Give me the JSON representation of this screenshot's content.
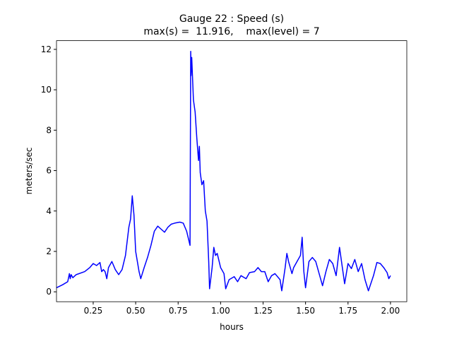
{
  "chart_data": {
    "type": "line",
    "title": "Gauge 22 : Speed (s)",
    "subtitle": "max(s) =  11.916,    max(level) = 7",
    "x_label": "hours",
    "y_label": "meters/sec",
    "xlim": [
      0.034,
      2.096
    ],
    "ylim": [
      -0.49,
      12.43
    ],
    "xticks": [
      0.25,
      {
        "value": 0.5,
        "label": "0.50"
      },
      0.75,
      {
        "value": 1.0,
        "label": "1.00"
      },
      1.25,
      {
        "value": 1.5,
        "label": "1.50"
      },
      1.75,
      {
        "value": 2.0,
        "label": "2.00"
      }
    ],
    "yticks": [
      0,
      2,
      4,
      6,
      8,
      10,
      12
    ],
    "grid": false,
    "series": [
      {
        "name": "s",
        "color": "#0000ff",
        "x": [
          0.034,
          0.07,
          0.1,
          0.11,
          0.115,
          0.12,
          0.13,
          0.15,
          0.2,
          0.23,
          0.25,
          0.27,
          0.29,
          0.3,
          0.31,
          0.32,
          0.33,
          0.34,
          0.36,
          0.38,
          0.4,
          0.42,
          0.44,
          0.46,
          0.47,
          0.48,
          0.49,
          0.5,
          0.52,
          0.53,
          0.55,
          0.57,
          0.59,
          0.61,
          0.63,
          0.65,
          0.67,
          0.69,
          0.71,
          0.73,
          0.76,
          0.78,
          0.8,
          0.82,
          0.824,
          0.826,
          0.83,
          0.84,
          0.85,
          0.86,
          0.87,
          0.875,
          0.88,
          0.89,
          0.9,
          0.91,
          0.92,
          0.93,
          0.935,
          0.95,
          0.96,
          0.97,
          0.98,
          1.0,
          1.02,
          1.03,
          1.05,
          1.08,
          1.1,
          1.12,
          1.15,
          1.17,
          1.2,
          1.22,
          1.24,
          1.26,
          1.28,
          1.3,
          1.32,
          1.35,
          1.36,
          1.38,
          1.39,
          1.4,
          1.42,
          1.43,
          1.45,
          1.47,
          1.48,
          1.49,
          1.5,
          1.52,
          1.54,
          1.56,
          1.58,
          1.6,
          1.62,
          1.64,
          1.66,
          1.68,
          1.7,
          1.72,
          1.73,
          1.75,
          1.77,
          1.79,
          1.81,
          1.83,
          1.85,
          1.87,
          1.9,
          1.92,
          1.94,
          1.96,
          1.98,
          1.99,
          2.0
        ],
        "values": [
          0.2,
          0.35,
          0.5,
          0.9,
          0.65,
          0.85,
          0.7,
          0.85,
          1.0,
          1.2,
          1.4,
          1.3,
          1.45,
          1.0,
          1.1,
          1.0,
          0.65,
          1.2,
          1.5,
          1.1,
          0.85,
          1.1,
          1.8,
          3.2,
          3.6,
          4.75,
          3.8,
          2.0,
          1.0,
          0.65,
          1.2,
          1.7,
          2.3,
          3.0,
          3.25,
          3.1,
          2.95,
          3.2,
          3.35,
          3.4,
          3.45,
          3.4,
          3.0,
          2.3,
          11.9,
          10.7,
          11.6,
          9.5,
          8.9,
          7.6,
          6.5,
          7.2,
          5.9,
          5.3,
          5.5,
          4.0,
          3.5,
          1.5,
          0.15,
          1.2,
          2.2,
          1.8,
          1.9,
          1.2,
          0.9,
          0.15,
          0.6,
          0.75,
          0.5,
          0.8,
          0.65,
          0.95,
          1.0,
          1.2,
          1.0,
          1.0,
          0.5,
          0.8,
          0.9,
          0.6,
          0.05,
          1.2,
          1.9,
          1.5,
          0.9,
          1.2,
          1.5,
          1.8,
          2.7,
          1.0,
          0.2,
          1.5,
          1.7,
          1.5,
          0.9,
          0.3,
          1.0,
          1.6,
          1.4,
          0.8,
          2.2,
          1.0,
          0.4,
          1.4,
          1.15,
          1.6,
          1.0,
          1.4,
          0.6,
          0.05,
          0.8,
          1.45,
          1.4,
          1.2,
          0.95,
          0.65,
          0.8
        ]
      }
    ]
  }
}
